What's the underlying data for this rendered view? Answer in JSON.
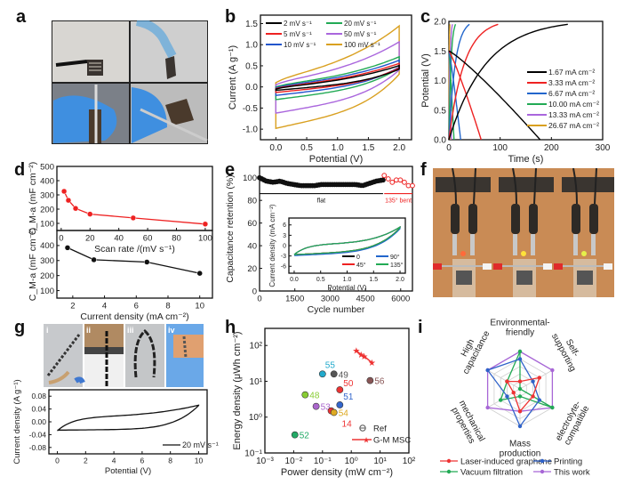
{
  "panel_letters": {
    "a": "a",
    "b": "b",
    "c": "c",
    "d": "d",
    "e": "e",
    "f": "f",
    "g": "g",
    "h": "h",
    "i": "i"
  },
  "photos": {
    "a": {
      "description": "four photos of flexible micro-supercapacitor held by tweezers and gloved hands"
    },
    "f": {
      "description": "three photos of device powering LEDs via alligator clips",
      "led_colors": [
        "#ff6a3a",
        "#ffe23a",
        "#e6f04a"
      ]
    },
    "g": {
      "labels": [
        "i",
        "ii",
        "iii",
        "iv"
      ]
    }
  },
  "chart_data": [
    {
      "id": "b",
      "type": "line",
      "title": "",
      "xlabel": "Potential (V)",
      "ylabel": "Current (A g⁻¹)",
      "xlim": [
        -0.25,
        2.2
      ],
      "ylim": [
        -1.25,
        1.7
      ],
      "xticks": [
        "0.0",
        "0.5",
        "1.0",
        "1.5",
        "2.0"
      ],
      "yticks": [
        "-1.0",
        "-0.5",
        "0.0",
        "0.5",
        "1.0",
        "1.5"
      ],
      "legend_position": "top-left",
      "series": [
        {
          "name": "2 mV s⁻¹",
          "color": "#000000",
          "upper_start": -0.05,
          "upper_end": 0.48,
          "lower_start": -0.08,
          "lower_end": 0.42
        },
        {
          "name": "5 mV s⁻¹",
          "color": "#ee2222",
          "upper_start": -0.04,
          "upper_end": 0.53,
          "lower_start": -0.13,
          "lower_end": 0.45
        },
        {
          "name": "10 mV s⁻¹",
          "color": "#2255cc",
          "upper_start": -0.02,
          "upper_end": 0.6,
          "lower_start": -0.2,
          "lower_end": 0.47
        },
        {
          "name": "20 mV s⁻¹",
          "color": "#22aa55",
          "upper_start": 0.0,
          "upper_end": 0.68,
          "lower_start": -0.3,
          "lower_end": 0.45
        },
        {
          "name": "50 mV s⁻¹",
          "color": "#aa66dd",
          "upper_start": 0.05,
          "upper_end": 1.02,
          "lower_start": -0.62,
          "lower_end": 0.4
        },
        {
          "name": "100 mV s⁻¹",
          "color": "#d9a020",
          "upper_start": 0.1,
          "upper_end": 1.38,
          "lower_start": -0.98,
          "lower_end": 0.3
        }
      ]
    },
    {
      "id": "c",
      "type": "line",
      "xlabel": "Time (s)",
      "ylabel": "Potential (V)",
      "xlim": [
        0,
        300
      ],
      "ylim": [
        0,
        2.0
      ],
      "xticks": [
        "0",
        "100",
        "200",
        "300"
      ],
      "yticks": [
        "0.0",
        "0.5",
        "1.0",
        "1.5",
        "2.0"
      ],
      "legend_position": "center-right",
      "series": [
        {
          "name": "1.67 mA cm⁻²",
          "color": "#000000",
          "charge_end_s": 232,
          "discharge_end_s": 178
        },
        {
          "name": "3.33 mA cm⁻²",
          "color": "#ee2222",
          "charge_end_s": 96,
          "discharge_end_s": 63
        },
        {
          "name": "6.67 mA cm⁻²",
          "color": "#2266cc",
          "charge_end_s": 40,
          "discharge_end_s": 23
        },
        {
          "name": "10.00 mA cm⁻²",
          "color": "#22aa55",
          "charge_end_s": 13,
          "discharge_end_s": 10
        },
        {
          "name": "13.33 mA cm⁻²",
          "color": "#aa66dd",
          "charge_end_s": 7,
          "discharge_end_s": 5
        },
        {
          "name": "26.67 mA cm⁻²",
          "color": "#d9a020",
          "charge_end_s": 2,
          "discharge_end_s": 2
        }
      ],
      "v_max": 1.95,
      "ir_drop_start": 1.5
    },
    {
      "id": "d-top",
      "type": "line",
      "xlabel": "Scan rate /(mV s⁻¹)",
      "ylabel": "C_M-a (mF cm⁻²)",
      "xlim": [
        -3,
        105
      ],
      "ylim": [
        50,
        500
      ],
      "xticks": [
        "0",
        "20",
        "40",
        "60",
        "80",
        "100"
      ],
      "yticks": [
        "100",
        "200",
        "300",
        "400",
        "500"
      ],
      "series": [
        {
          "name": "scan rate",
          "color": "#ee2222",
          "x": [
            2,
            5,
            10,
            20,
            50,
            100
          ],
          "y": [
            325,
            262,
            205,
            165,
            138,
            95
          ]
        }
      ]
    },
    {
      "id": "d-bottom",
      "type": "line",
      "xlabel": "Current density (mA cm⁻²)",
      "ylabel": "C_M-a (mF cm⁻²)",
      "xlim": [
        1,
        10.8
      ],
      "ylim": [
        50,
        500
      ],
      "xticks": [
        "2",
        "4",
        "6",
        "8",
        "10"
      ],
      "yticks": [
        "100",
        "200",
        "300",
        "400"
      ],
      "series": [
        {
          "name": "current density",
          "color": "#111111",
          "x": [
            1.67,
            3.33,
            6.67,
            10.0
          ],
          "y": [
            385,
            305,
            290,
            215
          ]
        }
      ]
    },
    {
      "id": "e",
      "type": "scatter",
      "xlabel": "Cycle number",
      "ylabel": "Capacitance retention (%)",
      "xlim": [
        0,
        6500
      ],
      "ylim": [
        0,
        110
      ],
      "xticks": [
        "0",
        "1500",
        "3000",
        "4500",
        "6000"
      ],
      "yticks": [
        "0",
        "20",
        "40",
        "60",
        "80",
        "100"
      ],
      "annotations": [
        "flat",
        "135° bent"
      ],
      "series": [
        {
          "name": "flat",
          "color": "#111111",
          "x_range": [
            0,
            5250
          ],
          "retention_profile": [
            100,
            97,
            96,
            97,
            95,
            94,
            93,
            93,
            93,
            94,
            94,
            94,
            94,
            94,
            94,
            93,
            95,
            97,
            98
          ]
        },
        {
          "name": "135° bent",
          "color": "#ee2222",
          "x_range": [
            5300,
            6500
          ],
          "retention_profile": [
            102,
            99,
            96,
            98,
            98,
            96,
            93,
            93
          ]
        }
      ],
      "inset": {
        "xlabel": "Potential (V)",
        "ylabel": "Current density (mA cm⁻²)",
        "xlim": [
          -0.1,
          2.1
        ],
        "ylim": [
          -8,
          8
        ],
        "xticks": [
          "0.0",
          "0.5",
          "1.0",
          "1.5",
          "2.0"
        ],
        "yticks": [
          "-6",
          "-3",
          "0",
          "3",
          "6"
        ],
        "series": [
          {
            "name": "0",
            "color": "#111111"
          },
          {
            "name": "45°",
            "color": "#ee2222"
          },
          {
            "name": "90°",
            "color": "#2266cc"
          },
          {
            "name": "135°",
            "color": "#22aa55"
          }
        ]
      }
    },
    {
      "id": "g",
      "type": "line",
      "xlabel": "Potential (V)",
      "ylabel": "Current density (A g⁻¹)",
      "xlim": [
        -0.6,
        10.6
      ],
      "ylim": [
        -0.1,
        0.1
      ],
      "xticks": [
        "0",
        "2",
        "4",
        "6",
        "8",
        "10"
      ],
      "yticks": [
        "-0.08",
        "-0.04",
        "0.00",
        "0.04",
        "0.08"
      ],
      "series": [
        {
          "name": "20 mV s⁻¹",
          "color": "#111111"
        }
      ]
    },
    {
      "id": "h",
      "type": "scatter",
      "xlabel": "Power density (mW cm⁻²)",
      "ylabel": "Energy density (μWh cm⁻²)",
      "xscale": "log",
      "yscale": "log",
      "xlim": [
        0.001,
        100
      ],
      "ylim": [
        0.1,
        300
      ],
      "xticks": [
        "10⁻³",
        "10⁻²",
        "10⁻¹",
        "10⁰",
        "10¹",
        "10²"
      ],
      "yticks": [
        "10⁻¹",
        "10⁰",
        "10¹",
        "10²"
      ],
      "legend": [
        "Ref",
        "G-M MSC"
      ],
      "legend_position": "bottom-right",
      "points": [
        {
          "label": "55",
          "x": 0.1,
          "y": 16,
          "color": "#22aacc"
        },
        {
          "label": "49",
          "x": 0.25,
          "y": 16,
          "color": "#555555"
        },
        {
          "label": "56",
          "x": 4.5,
          "y": 10.5,
          "color": "#885555"
        },
        {
          "label": "50",
          "x": 0.4,
          "y": 5.8,
          "color": "#ee3333"
        },
        {
          "label": "48",
          "x": 0.025,
          "y": 4.2,
          "color": "#88cc33"
        },
        {
          "label": "51",
          "x": 0.4,
          "y": 2.2,
          "color": "#3366cc"
        },
        {
          "label": "53",
          "x": 0.06,
          "y": 2.0,
          "color": "#aa66cc"
        },
        {
          "label": "14",
          "x": 0.2,
          "y": 1.5,
          "color": "#ee3333"
        },
        {
          "label": "54",
          "x": 0.25,
          "y": 1.35,
          "color": "#ddaa22"
        },
        {
          "label": "52",
          "x": 0.011,
          "y": 0.32,
          "color": "#22aa66"
        }
      ],
      "gm_msc": {
        "color": "#ee3333",
        "x": [
          1.5,
          2.2,
          2.8,
          5.2
        ],
        "y": [
          72,
          55,
          50,
          33
        ]
      }
    },
    {
      "id": "i",
      "type": "radar",
      "axes": [
        "Environmental-friendly",
        "Self-supporting",
        "electrolyte-compatible",
        "Mass production",
        "mechanical properties",
        "High capacitance"
      ],
      "axis_label_lines": [
        [
          "Environmental-",
          "friendly"
        ],
        [
          "Self-",
          "supporting"
        ],
        [
          "electrolyte-",
          "compatible"
        ],
        [
          "Mass",
          "production"
        ],
        [
          "mechanical",
          "properties"
        ],
        [
          "High",
          "capacitance"
        ]
      ],
      "rings": 5,
      "max": 5,
      "series": [
        {
          "name": "Laser-induced graphene",
          "color": "#ee3333",
          "marker": "square",
          "values": [
            1,
            3,
            2,
            3,
            1,
            2
          ]
        },
        {
          "name": "Printing",
          "color": "#2f62c9",
          "marker": "circle",
          "values": [
            4,
            2,
            3,
            5,
            2,
            5
          ]
        },
        {
          "name": "Vacuum  filtration",
          "color": "#22aa55",
          "marker": "triangle-up",
          "values": [
            5,
            0,
            5,
            1,
            3,
            2
          ]
        },
        {
          "name": "This work",
          "color": "#a766d6",
          "marker": "triangle-down",
          "values": [
            5,
            5,
            5,
            3,
            5,
            5
          ]
        }
      ]
    }
  ]
}
